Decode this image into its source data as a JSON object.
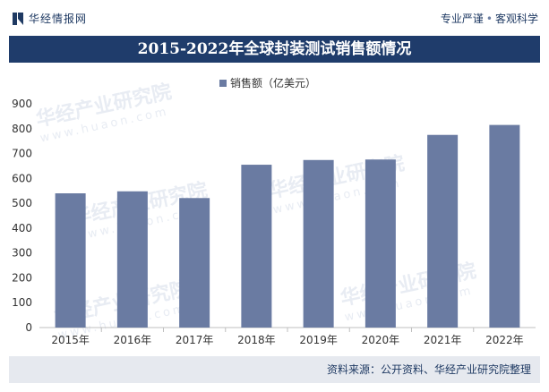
{
  "header": {
    "brand": "华经情报网",
    "slogan_left": "专业严谨",
    "slogan_right": "客观科学"
  },
  "watermark": {
    "text": "华经产业研究院",
    "url": "www.huaon.com"
  },
  "chart_data": {
    "type": "bar",
    "title": "2015-2022年全球封装测试销售额情况",
    "categories": [
      "2015年",
      "2016年",
      "2017年",
      "2018年",
      "2019年",
      "2020年",
      "2021年",
      "2022年"
    ],
    "series": [
      {
        "name": "销售额（亿美元）",
        "values": [
          540,
          548,
          521,
          655,
          674,
          676,
          775,
          815
        ]
      }
    ],
    "yticks": [
      0,
      100,
      200,
      300,
      400,
      500,
      600,
      700,
      800,
      900
    ],
    "ylim": [
      0,
      900
    ],
    "xlabel": "",
    "ylabel": "",
    "legend": "top-center",
    "grid": false,
    "bar_color": "#6a7ba2"
  },
  "footer": {
    "source": "资料来源：公开资料、华经产业研究院整理"
  }
}
